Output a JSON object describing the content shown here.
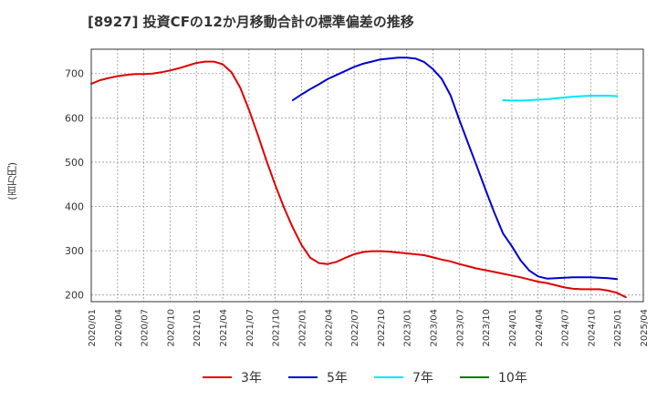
{
  "title": "[8927]  投資CFの12か月移動合計の標準偏差の推移",
  "unit_label": "(百万円)",
  "colors": {
    "series_3y": "#e00000",
    "series_5y": "#0000d0",
    "series_7y": "#00e5ff",
    "series_10y": "#007a00",
    "grid": "#999999",
    "axis": "#333333"
  },
  "chart_data": {
    "type": "line",
    "xlabel": "",
    "ylabel": "(百万円)",
    "ylim": [
      185,
      755
    ],
    "yticks": [
      200,
      300,
      400,
      500,
      600,
      700
    ],
    "xticks": [
      "2020/01",
      "2020/04",
      "2020/07",
      "2020/10",
      "2021/01",
      "2021/04",
      "2021/07",
      "2021/10",
      "2022/01",
      "2022/04",
      "2022/07",
      "2022/10",
      "2023/01",
      "2023/04",
      "2023/07",
      "2023/10",
      "2024/01",
      "2024/04",
      "2024/07",
      "2024/10",
      "2025/01",
      "2025/04"
    ],
    "grid": true,
    "legend_position": "bottom",
    "series": [
      {
        "name": "3年",
        "color_key": "series_3y",
        "points": [
          [
            "2020/01",
            677
          ],
          [
            "2020/02",
            685
          ],
          [
            "2020/03",
            690
          ],
          [
            "2020/04",
            694
          ],
          [
            "2020/05",
            697
          ],
          [
            "2020/06",
            699
          ],
          [
            "2020/07",
            699
          ],
          [
            "2020/08",
            700
          ],
          [
            "2020/09",
            703
          ],
          [
            "2020/10",
            707
          ],
          [
            "2020/11",
            712
          ],
          [
            "2020/12",
            718
          ],
          [
            "2021/01",
            724
          ],
          [
            "2021/02",
            727
          ],
          [
            "2021/03",
            727
          ],
          [
            "2021/04",
            721
          ],
          [
            "2021/05",
            703
          ],
          [
            "2021/06",
            668
          ],
          [
            "2021/07",
            618
          ],
          [
            "2021/08",
            562
          ],
          [
            "2021/09",
            503
          ],
          [
            "2021/10",
            448
          ],
          [
            "2021/11",
            397
          ],
          [
            "2021/12",
            352
          ],
          [
            "2022/01",
            313
          ],
          [
            "2022/02",
            284
          ],
          [
            "2022/03",
            272
          ],
          [
            "2022/04",
            270
          ],
          [
            "2022/05",
            275
          ],
          [
            "2022/06",
            284
          ],
          [
            "2022/07",
            292
          ],
          [
            "2022/08",
            297
          ],
          [
            "2022/09",
            299
          ],
          [
            "2022/10",
            299
          ],
          [
            "2022/11",
            298
          ],
          [
            "2022/12",
            296
          ],
          [
            "2023/01",
            294
          ],
          [
            "2023/02",
            292
          ],
          [
            "2023/03",
            290
          ],
          [
            "2023/04",
            285
          ],
          [
            "2023/05",
            280
          ],
          [
            "2023/06",
            276
          ],
          [
            "2023/07",
            270
          ],
          [
            "2023/08",
            265
          ],
          [
            "2023/09",
            260
          ],
          [
            "2023/10",
            256
          ],
          [
            "2023/11",
            252
          ],
          [
            "2023/12",
            248
          ],
          [
            "2024/01",
            244
          ],
          [
            "2024/02",
            240
          ],
          [
            "2024/03",
            235
          ],
          [
            "2024/04",
            230
          ],
          [
            "2024/05",
            227
          ],
          [
            "2024/06",
            222
          ],
          [
            "2024/07",
            217
          ],
          [
            "2024/08",
            214
          ],
          [
            "2024/09",
            213
          ],
          [
            "2024/10",
            213
          ],
          [
            "2024/11",
            213
          ],
          [
            "2024/12",
            210
          ],
          [
            "2025/01",
            205
          ],
          [
            "2025/02",
            195
          ]
        ]
      },
      {
        "name": "5年",
        "color_key": "series_5y",
        "points": [
          [
            "2021/12",
            640
          ],
          [
            "2022/01",
            653
          ],
          [
            "2022/02",
            665
          ],
          [
            "2022/03",
            676
          ],
          [
            "2022/04",
            688
          ],
          [
            "2022/05",
            697
          ],
          [
            "2022/06",
            706
          ],
          [
            "2022/07",
            715
          ],
          [
            "2022/08",
            722
          ],
          [
            "2022/09",
            727
          ],
          [
            "2022/10",
            732
          ],
          [
            "2022/11",
            734
          ],
          [
            "2022/12",
            736
          ],
          [
            "2023/01",
            736
          ],
          [
            "2023/02",
            734
          ],
          [
            "2023/03",
            726
          ],
          [
            "2023/04",
            710
          ],
          [
            "2023/05",
            688
          ],
          [
            "2023/06",
            651
          ],
          [
            "2023/07",
            596
          ],
          [
            "2023/08",
            543
          ],
          [
            "2023/09",
            491
          ],
          [
            "2023/10",
            438
          ],
          [
            "2023/11",
            386
          ],
          [
            "2023/12",
            339
          ],
          [
            "2024/01",
            310
          ],
          [
            "2024/02",
            278
          ],
          [
            "2024/03",
            255
          ],
          [
            "2024/04",
            242
          ],
          [
            "2024/05",
            237
          ],
          [
            "2024/06",
            238
          ],
          [
            "2024/07",
            239
          ],
          [
            "2024/08",
            240
          ],
          [
            "2024/09",
            240
          ],
          [
            "2024/10",
            240
          ],
          [
            "2024/11",
            239
          ],
          [
            "2024/12",
            238
          ],
          [
            "2025/01",
            236
          ]
        ]
      },
      {
        "name": "7年",
        "color_key": "series_7y",
        "points": [
          [
            "2023/12",
            640
          ],
          [
            "2024/01",
            639
          ],
          [
            "2024/02",
            639
          ],
          [
            "2024/03",
            640
          ],
          [
            "2024/04",
            641
          ],
          [
            "2024/05",
            642
          ],
          [
            "2024/06",
            644
          ],
          [
            "2024/07",
            646
          ],
          [
            "2024/08",
            648
          ],
          [
            "2024/09",
            649
          ],
          [
            "2024/10",
            650
          ],
          [
            "2024/11",
            650
          ],
          [
            "2024/12",
            650
          ],
          [
            "2025/01",
            649
          ]
        ]
      },
      {
        "name": "10年",
        "color_key": "series_10y",
        "points": []
      }
    ]
  }
}
